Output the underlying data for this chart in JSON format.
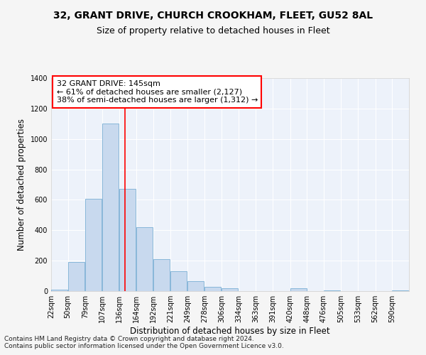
{
  "title": "32, GRANT DRIVE, CHURCH CROOKHAM, FLEET, GU52 8AL",
  "subtitle": "Size of property relative to detached houses in Fleet",
  "xlabel": "Distribution of detached houses by size in Fleet",
  "ylabel": "Number of detached properties",
  "bar_color": "#c8d9ee",
  "bar_edge_color": "#7aafd4",
  "bin_labels": [
    "22sqm",
    "50sqm",
    "79sqm",
    "107sqm",
    "136sqm",
    "164sqm",
    "192sqm",
    "221sqm",
    "249sqm",
    "278sqm",
    "306sqm",
    "334sqm",
    "363sqm",
    "391sqm",
    "420sqm",
    "448sqm",
    "476sqm",
    "505sqm",
    "533sqm",
    "562sqm",
    "590sqm"
  ],
  "bin_starts": [
    22,
    50,
    79,
    107,
    136,
    164,
    192,
    221,
    249,
    278,
    306,
    334,
    363,
    391,
    420,
    448,
    476,
    505,
    533,
    562,
    590
  ],
  "bin_width": 28,
  "values": [
    10,
    190,
    605,
    1100,
    670,
    420,
    210,
    130,
    65,
    30,
    20,
    0,
    0,
    0,
    18,
    0,
    5,
    0,
    0,
    0,
    5
  ],
  "red_line_x": 145,
  "annotation_line1": "32 GRANT DRIVE: 145sqm",
  "annotation_line2": "← 61% of detached houses are smaller (2,127)",
  "annotation_line3": "38% of semi-detached houses are larger (1,312) →",
  "ylim": [
    0,
    1400
  ],
  "yticks": [
    0,
    200,
    400,
    600,
    800,
    1000,
    1200,
    1400
  ],
  "footer1": "Contains HM Land Registry data © Crown copyright and database right 2024.",
  "footer2": "Contains public sector information licensed under the Open Government Licence v3.0.",
  "background_color": "#edf2fa",
  "grid_color": "#ffffff",
  "title_fontsize": 10,
  "subtitle_fontsize": 9,
  "axis_label_fontsize": 8.5,
  "tick_fontsize": 7,
  "annotation_fontsize": 8,
  "footer_fontsize": 6.5
}
